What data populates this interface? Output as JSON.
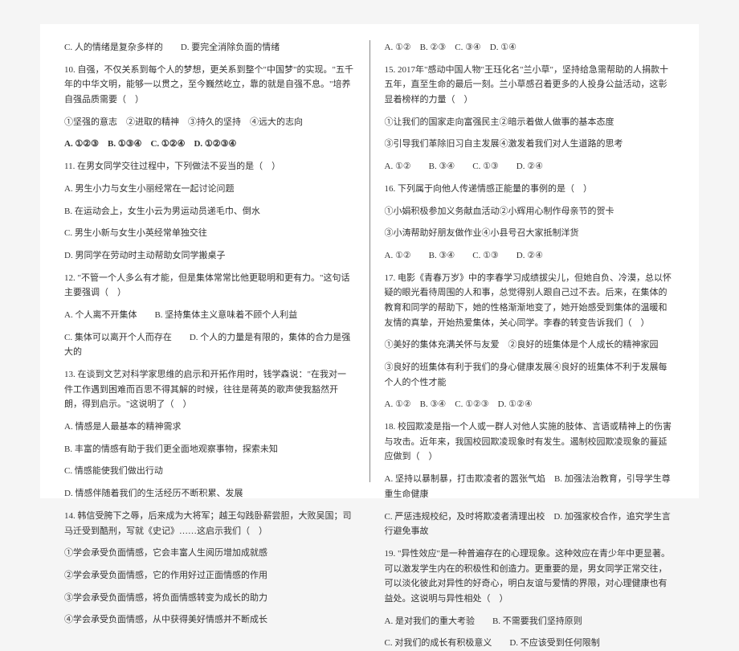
{
  "left": {
    "q_c_d": "C. 人的情绪是复杂多样的　　D. 要完全消除负面的情绪",
    "q10_stem": "10. 自强，不仅关系到每个人的梦想，更关系到整个\"中国梦\"的实现。\"五千年的中华文明，能够一以贯之，至今巍然屹立，靠的就是自强不息。\"培养自强品质需要（　）",
    "q10_opts_line": "①坚强的意志　②进取的精神　③持久的坚持　④远大的志向",
    "q10_choices": "A. ①②③　B. ①③④　C. ①②④　D. ①②③④",
    "q11_stem": "11. 在男女同学交往过程中，下列做法不妥当的是（　）",
    "q11_a": "A. 男生小力与女生小丽经常在一起讨论问题",
    "q11_b": "B. 在运动会上，女生小云为男运动员递毛巾、倒水",
    "q11_c": "C. 男生小新与女生小英经常单独交往",
    "q11_d": "D. 男同学在劳动时主动帮助女同学搬桌子",
    "q12_stem": "12. \"不管一个人多么有才能，但是集体常常比他更聪明和更有力。\"这句话主要强调（　）",
    "q12_ab": "A. 个人离不开集体　　B. 坚持集体主义意味着不顾个人利益",
    "q12_cd": "C. 集体可以离开个人而存在　　D. 个人的力量是有限的，集体的合力是强大的",
    "q13_stem": "13. 在谈到文艺对科学家思维的启示和开拓作用时，钱学森说：\"在我对一件工作遇到困难而百思不得其解的时候，往往是蒋英的歌声使我豁然开朗，得到启示。\"这说明了（　）",
    "q13_a": "A. 情感是人最基本的精神需求",
    "q13_b": "B. 丰富的情感有助于我们更全面地观察事物，探索未知",
    "q13_c": "C. 情感能使我们做出行动",
    "q13_d": "D. 情感伴随着我们的生活经历不断积累、发展",
    "q14_stem": "14. 韩信受胯下之辱，后来成为大将军；越王勾践卧薪尝胆，大败吴国；司马迁受到酷刑，写就《史记》……这启示我们（　）",
    "q14_1": "①学会承受负面情感，它会丰富人生阅历增加成就感",
    "q14_2": "②学会承受负面情感，它的作用好过正面情感的作用",
    "q14_3": "③学会承受负面情感，将负面情感转变为成长的助力",
    "q14_4": "④学会承受负面情感，从中获得美好情感并不断成长"
  },
  "right": {
    "q14_choices": "A. ①②　B. ②③　C. ③④　D. ①④",
    "q15_stem": "15. 2017年\"感动中国人物\"王珏化名\"兰小草\"，坚持给急需帮助的人捐款十五年，直至生命的最后一刻。兰小草感召着更多的人投身公益活动，这彰显着榜样的力量（　）",
    "q15_1": "①让我们的国家走向富强民主②暗示着做人做事的基本态度",
    "q15_2": "③引导我们革除旧习自主发展④激发着我们对人生道路的思考",
    "q15_choices": "A. ①②　　B. ③④　　C. ①③　　D. ②④",
    "q16_stem": "16. 下列属于向他人传递情感正能量的事例的是（　）",
    "q16_1": "①小娟积极参加义务献血活动②小辉用心制作母亲节的贺卡",
    "q16_2": "③小涛帮助好朋友做作业④小县号召大家抵制洋货",
    "q16_choices": "A. ①②　　B. ③④　　C. ①③　　D. ②④",
    "q17_stem": "17. 电影《青春万岁》中的李春学习成绩拔尖儿，但她自负、冷漠，总以怀疑的眼光看待周围的人和事，总觉得别人跟自己过不去。后来，在集体的教育和同学的帮助下，她的性格渐渐地变了，她开始感受到集体的温暖和友情的真挚，开始热爱集体，关心同学。李春的转变告诉我们（　）",
    "q17_1": "①美好的集体充满关怀与友爱　②良好的班集体是个人成长的精神家园",
    "q17_2": "③良好的班集体有利于我们的身心健康发展④良好的班集体不利于发展每个人的个性才能",
    "q17_choices": "A. ①②　B. ③④　C. ①②③　D. ①②④",
    "q18_stem": "18. 校园欺凌是指一个人或一群人对他人实施的肢体、言语或精神上的伤害与攻击。近年来，我国校园欺凌现象时有发生。遏制校园欺凌现象的蔓延应做到（　）",
    "q18_ab": "A. 坚持以暴制暴，打击欺凌者的嚣张气焰　B. 加强法治教育，引导学生尊重生命健康",
    "q18_cd": "C. 严惩违规校纪，及时将欺凌者清理出校　D. 加强家校合作，追究学生言行避免事故",
    "q19_stem": "19. \"异性效应\"是一种普遍存在的心理现象。这种效应在青少年中更显著。可以激发学生内在的积极性和创造力。更重要的是，男女同学正常交往，可以淡化彼此对异性的好奇心，明白友谊与爱情的界限，对心理健康也有益处。这说明与异性相处（　）",
    "q19_ab": "A. 是对我们的重大考验　　B. 不需要我们坚持原则",
    "q19_cd": "C. 对我们的成长有积极意义　　D. 不应该受到任何限制"
  }
}
